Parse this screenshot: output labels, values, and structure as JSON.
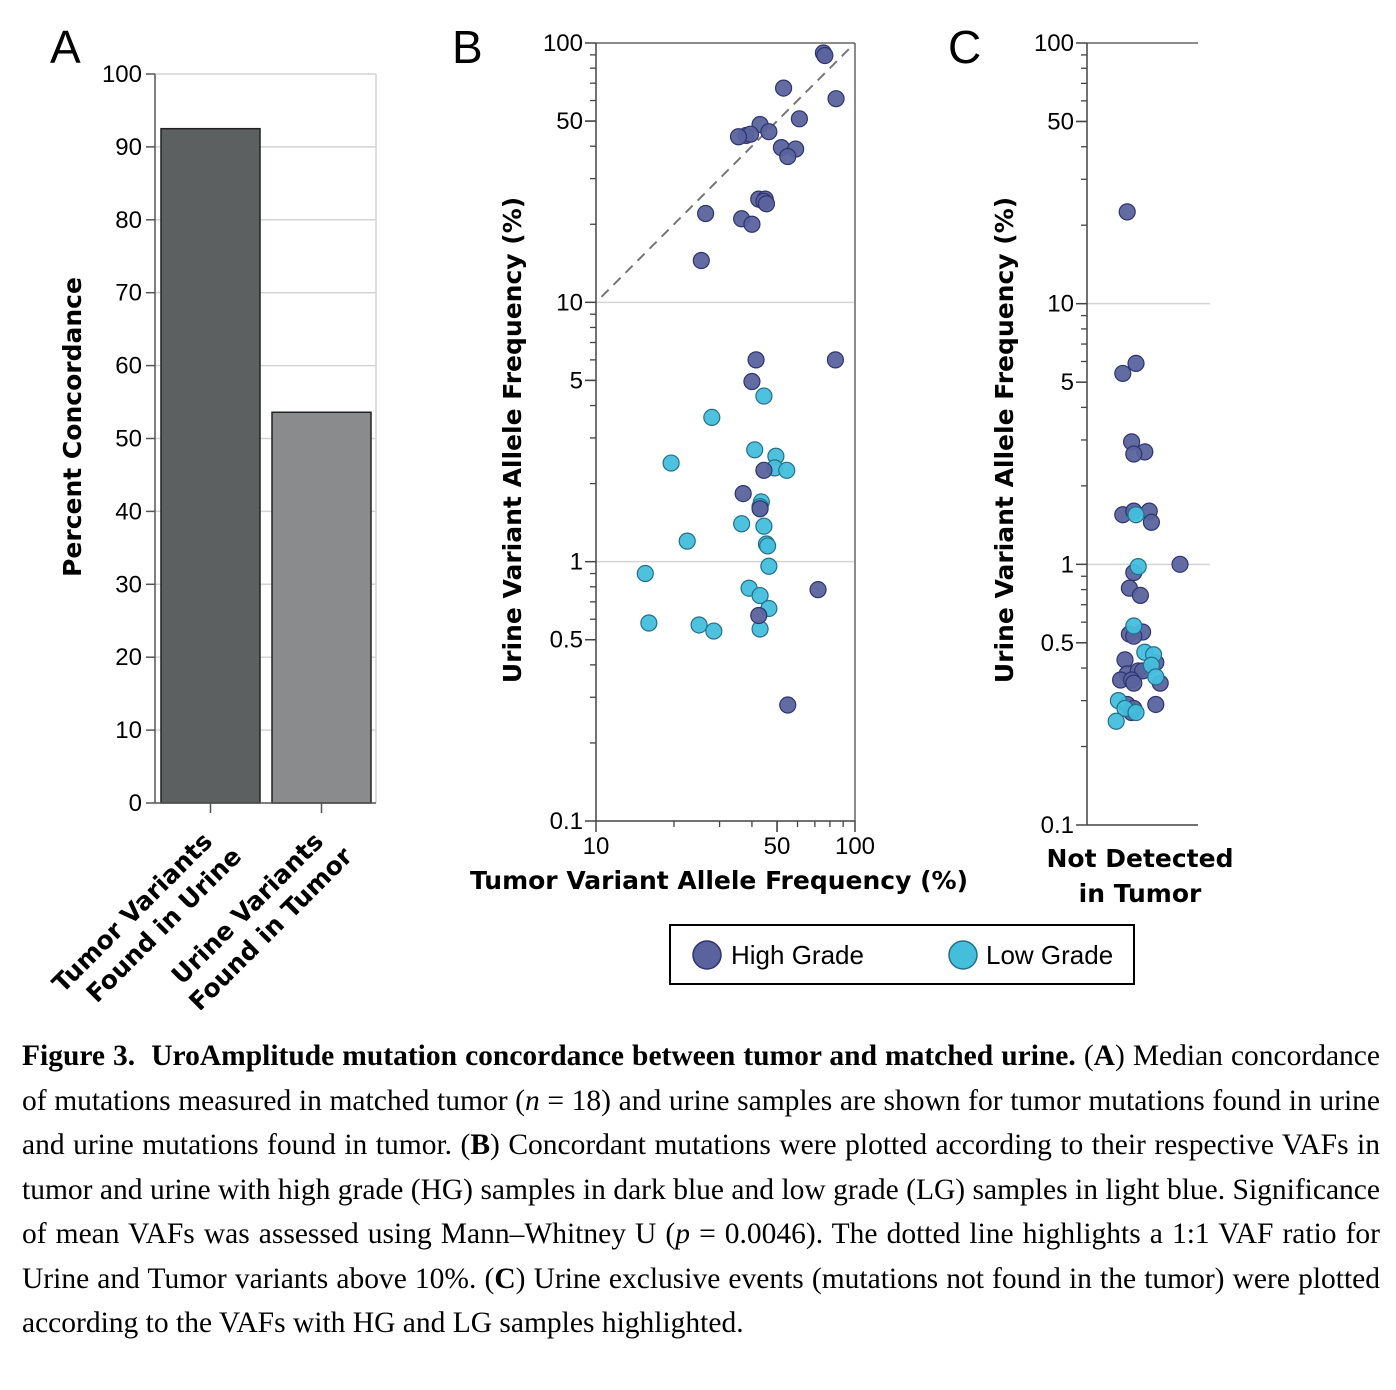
{
  "colors": {
    "high_grade": "#5b639e",
    "high_grade_edge": "#2d3470",
    "low_grade": "#43bfdc",
    "low_grade_edge": "#236f8a",
    "bar_1": "#5c6060",
    "bar_2": "#8a8b8c",
    "grid": "#d4d4d4"
  },
  "legend": {
    "high_label": "High Grade",
    "low_label": "Low Grade"
  },
  "chart_data": [
    {
      "panel": "A",
      "type": "bar",
      "title": "",
      "ylabel": "Percent Concordance",
      "xlabel": "",
      "ylim": [
        0,
        100
      ],
      "yticks": [
        0,
        10,
        20,
        30,
        40,
        50,
        60,
        70,
        80,
        90,
        100
      ],
      "categories": [
        "Tumor Variants|Found in Urine",
        "Urine Variants|Found in Tumor"
      ],
      "values": [
        92.5,
        53.6
      ],
      "grid": true
    },
    {
      "panel": "B",
      "type": "scatter",
      "xscale": "log",
      "yscale": "log",
      "xlim": [
        10,
        100
      ],
      "ylim": [
        0.1,
        100
      ],
      "xticks": [
        10,
        50,
        100
      ],
      "yticks": [
        0.1,
        0.5,
        1,
        5,
        10,
        50,
        100
      ],
      "xlabel": "Tumor Variant Allele Frequency (%)",
      "ylabel": "Urine Variant Allele Frequency (%)",
      "reference_line": "1:1",
      "series": [
        {
          "name": "High Grade",
          "points": [
            [
              75.5,
              91.5
            ],
            [
              76.5,
              89.5
            ],
            [
              53,
              67
            ],
            [
              84.5,
              61
            ],
            [
              61,
              51
            ],
            [
              43,
              48.5
            ],
            [
              46.5,
              45.5
            ],
            [
              38,
              44
            ],
            [
              39.5,
              44.5
            ],
            [
              35.5,
              43.5
            ],
            [
              52,
              39.5
            ],
            [
              59,
              39
            ],
            [
              55,
              36.5
            ],
            [
              42.5,
              25
            ],
            [
              45,
              25
            ],
            [
              44.5,
              24.5
            ],
            [
              45.5,
              24
            ],
            [
              26.5,
              22
            ],
            [
              36.5,
              21
            ],
            [
              40,
              20
            ],
            [
              25.5,
              14.5
            ],
            [
              41.5,
              6
            ],
            [
              84,
              6
            ],
            [
              40,
              4.95
            ],
            [
              44.5,
              2.25
            ],
            [
              37,
              1.83
            ],
            [
              43,
              1.6
            ],
            [
              72,
              0.78
            ],
            [
              42.5,
              0.62
            ],
            [
              55,
              0.28
            ]
          ]
        },
        {
          "name": "Low Grade",
          "points": [
            [
              44.5,
              4.35
            ],
            [
              28,
              3.6
            ],
            [
              41,
              2.7
            ],
            [
              49.5,
              2.55
            ],
            [
              49,
              2.3
            ],
            [
              54.5,
              2.25
            ],
            [
              19.5,
              2.4
            ],
            [
              43.5,
              1.7
            ],
            [
              43,
              1.63
            ],
            [
              36.5,
              1.4
            ],
            [
              44.5,
              1.37
            ],
            [
              22.5,
              1.2
            ],
            [
              45.5,
              1.17
            ],
            [
              46,
              1.15
            ],
            [
              46.5,
              0.96
            ],
            [
              15.5,
              0.9
            ],
            [
              39,
              0.79
            ],
            [
              43,
              0.74
            ],
            [
              46.5,
              0.66
            ],
            [
              16,
              0.58
            ],
            [
              25,
              0.57
            ],
            [
              28.5,
              0.54
            ],
            [
              43,
              0.55
            ]
          ]
        }
      ]
    },
    {
      "panel": "C",
      "type": "scatter",
      "yscale": "log",
      "ylim": [
        0.1,
        100
      ],
      "yticks": [
        0.1,
        0.5,
        1,
        5,
        10,
        50,
        100
      ],
      "ylabel": "Urine Variant Allele Frequency (%)",
      "xlabel": "Not Detected|in Tumor",
      "x_note": "jittered categorical strip",
      "series": [
        {
          "name": "High Grade",
          "points": [
            [
              -0.2,
              22.5
            ],
            [
              0.0,
              5.9
            ],
            [
              -0.3,
              5.4
            ],
            [
              -0.1,
              2.95
            ],
            [
              0.2,
              2.7
            ],
            [
              -0.05,
              2.65
            ],
            [
              0.3,
              1.6
            ],
            [
              -0.3,
              1.55
            ],
            [
              -0.05,
              1.6
            ],
            [
              0.35,
              1.45
            ],
            [
              1.0,
              1.0
            ],
            [
              -0.05,
              0.93
            ],
            [
              -0.15,
              0.81
            ],
            [
              0.1,
              0.76
            ],
            [
              0.15,
              0.55
            ],
            [
              -0.15,
              0.54
            ],
            [
              -0.05,
              0.53
            ],
            [
              -0.25,
              0.43
            ],
            [
              0.45,
              0.42
            ],
            [
              -0.2,
              0.38
            ],
            [
              0.05,
              0.39
            ],
            [
              0.15,
              0.39
            ],
            [
              -0.35,
              0.36
            ],
            [
              -0.1,
              0.36
            ],
            [
              -0.05,
              0.35
            ],
            [
              0.55,
              0.35
            ],
            [
              0.45,
              0.29
            ],
            [
              -0.2,
              0.29
            ],
            [
              -0.1,
              0.27
            ],
            [
              -0.05,
              0.28
            ]
          ]
        },
        {
          "name": "Low Grade",
          "points": [
            [
              0.0,
              1.55
            ],
            [
              0.05,
              0.98
            ],
            [
              -0.05,
              0.58
            ],
            [
              0.2,
              0.46
            ],
            [
              0.4,
              0.45
            ],
            [
              0.35,
              0.41
            ],
            [
              0.45,
              0.37
            ],
            [
              -0.4,
              0.3
            ],
            [
              -0.25,
              0.28
            ],
            [
              -0.45,
              0.25
            ],
            [
              0.0,
              0.27
            ]
          ]
        }
      ]
    }
  ],
  "panels": {
    "A": {
      "letter": "A"
    },
    "B": {
      "letter": "B"
    },
    "C": {
      "letter": "C"
    }
  },
  "caption": {
    "label": "Figure 3.",
    "title": "UroAmplitude mutation concordance between tumor and matched urine.",
    "partA_letter": "A",
    "partA": " Median concordance of mutations measured in matched tumor (",
    "n_symbol": "n",
    "n_value": " = 18) and urine samples are shown for tumor mutations found in urine and urine mutations found in tumor. ",
    "partB_letter": "B",
    "partB": " Concordant mutations were plotted according to their respective VAFs in tumor and urine with high grade (HG) samples in dark blue and low grade (LG) samples in light blue. Significance of mean VAFs was assessed using Mann–Whitney U (",
    "p_symbol": "p",
    "p_value": " = 0.0046). The dotted line highlights a 1:1 VAF ratio for Urine and Tumor variants above 10%. ",
    "partC_letter": "C",
    "partC": " Urine exclusive events (mutations not found in the tumor) were plotted according to the VAFs with HG and LG samples highlighted."
  }
}
